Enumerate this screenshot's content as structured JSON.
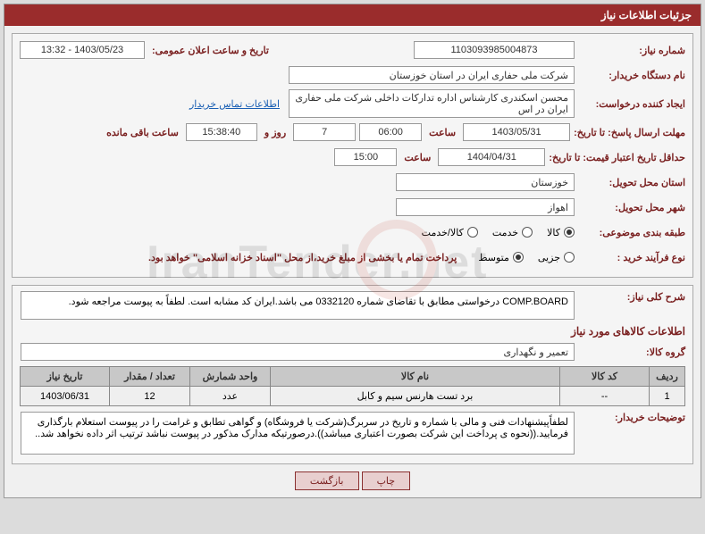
{
  "title": "جزئیات اطلاعات نیاز",
  "labels": {
    "need_no": "شماره نیاز:",
    "announce": "تاریخ و ساعت اعلان عمومی:",
    "buyer_org": "نام دستگاه خریدار:",
    "requester": "ایجاد کننده درخواست:",
    "contact_link": "اطلاعات تماس خریدار",
    "deadline": "مهلت ارسال پاسخ: تا تاریخ:",
    "time_l": "ساعت",
    "days_l": "روز و",
    "remain_l": "ساعت باقی مانده",
    "min_validity": "حداقل تاریخ اعتبار قیمت: تا تاریخ:",
    "delivery_province": "استان محل تحویل:",
    "delivery_city": "شهر محل تحویل:",
    "classification": "طبقه بندی موضوعی:",
    "purchase_process": "نوع فرآیند خرید :",
    "desc": "شرح کلی نیاز:",
    "goods_info": "اطلاعات کالاهای مورد نیاز",
    "goods_group": "گروه کالا:",
    "buyer_notes": "توضیحات خریدار:"
  },
  "fields": {
    "need_no": "1103093985004873",
    "announce": "1403/05/23 - 13:32",
    "buyer_org": "شرکت ملی حفاری ایران در استان خوزستان",
    "requester": "محسن اسکندری کارشناس اداره تدارکات داخلی  شرکت ملی حفاری ایران در اس",
    "deadline_date": "1403/05/31",
    "deadline_time": "06:00",
    "days": "7",
    "remain": "15:38:40",
    "validity_date": "1404/04/31",
    "validity_time": "15:00",
    "province": "خوزستان",
    "city": "اهواز",
    "desc": "COMP.BOARD درخواستی مطابق با تقاضای شماره 0332120 می باشد.ایران کد مشابه است. لطفاً به پیوست مراجعه شود.",
    "goods_group": "تعمیر و نگهداری",
    "buyer_notes": "لطفاًپیشنهادات فنی و مالی با شماره و تاریخ در سربرگ(شرکت یا فروشگاه) و گواهی تطابق و غرامت را در پیوست استعلام بارگذاری فرمایید.((نحوه ی پرداخت این شرکت بصورت اعتباری میباشد)).درصورتیکه مدارک مذکور در پیوست نباشد ترتیب اثر داده نخواهد شد.."
  },
  "radios": {
    "class": [
      {
        "label": "کالا",
        "checked": true
      },
      {
        "label": "خدمت",
        "checked": false
      },
      {
        "label": "کالا/خدمت",
        "checked": false
      }
    ],
    "process": [
      {
        "label": "جزیی",
        "checked": false
      },
      {
        "label": "متوسط",
        "checked": true
      }
    ]
  },
  "process_note": "پرداخت تمام یا بخشی از مبلغ خرید،از محل \"اسناد خزانه اسلامی\" خواهد بود.",
  "table": {
    "headers": [
      "ردیف",
      "کد کالا",
      "نام کالا",
      "واحد شمارش",
      "تعداد / مقدار",
      "تاریخ نیاز"
    ],
    "rows": [
      [
        "1",
        "--",
        "برد تست هارنس سیم و کابل",
        "عدد",
        "12",
        "1403/06/31"
      ]
    ]
  },
  "buttons": {
    "print": "چاپ",
    "back": "بازگشت"
  },
  "watermark": "IranTender.net",
  "colors": {
    "header": "#9a2c2c",
    "label": "#7a2020",
    "bg": "#dcdcdc"
  }
}
